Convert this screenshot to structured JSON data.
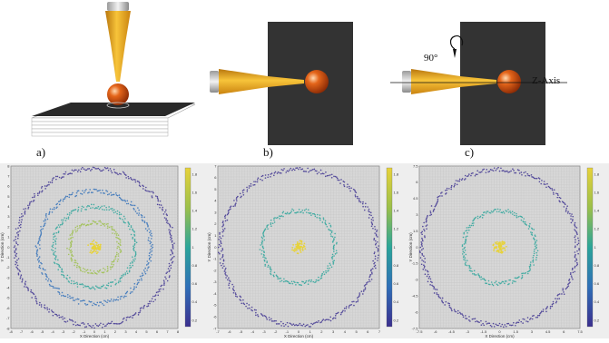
{
  "top_panels": {
    "a": {
      "label": "a)"
    },
    "b": {
      "label": "b)"
    },
    "c": {
      "label": "c)",
      "rotation_label": "90°",
      "axis_label": "Z-Axis"
    }
  },
  "plots": [
    {
      "x_axis_title": "X Direction (cm)",
      "y_axis_title": "Y Direction (cm)",
      "x_ticks": [
        "-8",
        "-7",
        "-6",
        "-5",
        "-4",
        "-3",
        "-2",
        "-1",
        "0",
        "1",
        "2",
        "3",
        "4",
        "5",
        "6",
        "7",
        "8"
      ],
      "y_ticks": [
        "8",
        "7",
        "6",
        "5",
        "4",
        "3",
        "2",
        "1",
        "0",
        "-1",
        "-2",
        "-3",
        "-4",
        "-5",
        "-6",
        "-7",
        "-8"
      ],
      "colorbar_ticks": [
        "1.8",
        "1.6",
        "1.4",
        "1.2",
        "1",
        "0.8",
        "0.6",
        "0.4",
        "0.2"
      ],
      "rings": 4
    },
    {
      "x_axis_title": "X Direction (cm)",
      "y_axis_title": "Y Direction (cm)",
      "x_ticks": [
        "-7",
        "-6",
        "-5",
        "-4",
        "-3",
        "-2",
        "-1",
        "0",
        "1",
        "2",
        "3",
        "4",
        "5",
        "6",
        "7"
      ],
      "y_ticks": [
        "7",
        "6",
        "5",
        "4",
        "3",
        "2",
        "1",
        "0",
        "-1",
        "-2",
        "-3",
        "-4",
        "-5",
        "-6",
        "-7"
      ],
      "colorbar_ticks": [
        "1.8",
        "1.6",
        "1.4",
        "1.2",
        "1",
        "0.8",
        "0.6",
        "0.4",
        "0.2"
      ],
      "rings": 2
    },
    {
      "x_axis_title": "X Direction (cm)",
      "y_axis_title": "Y Direction (cm)",
      "x_ticks": [
        "-7.5",
        "-6",
        "-4.5",
        "-3",
        "-1.5",
        "0",
        "1.5",
        "3",
        "4.5",
        "6",
        "7.5"
      ],
      "y_ticks": [
        "7.5",
        "6",
        "4.5",
        "3",
        "1.5",
        "0",
        "-1.5",
        "-3",
        "-4.5",
        "-6",
        "-7.5"
      ],
      "colorbar_ticks": [
        "1.8",
        "1.6",
        "1.4",
        "1.2",
        "1",
        "0.8",
        "0.6",
        "0.4",
        "0.2"
      ],
      "rings": 2
    }
  ]
}
